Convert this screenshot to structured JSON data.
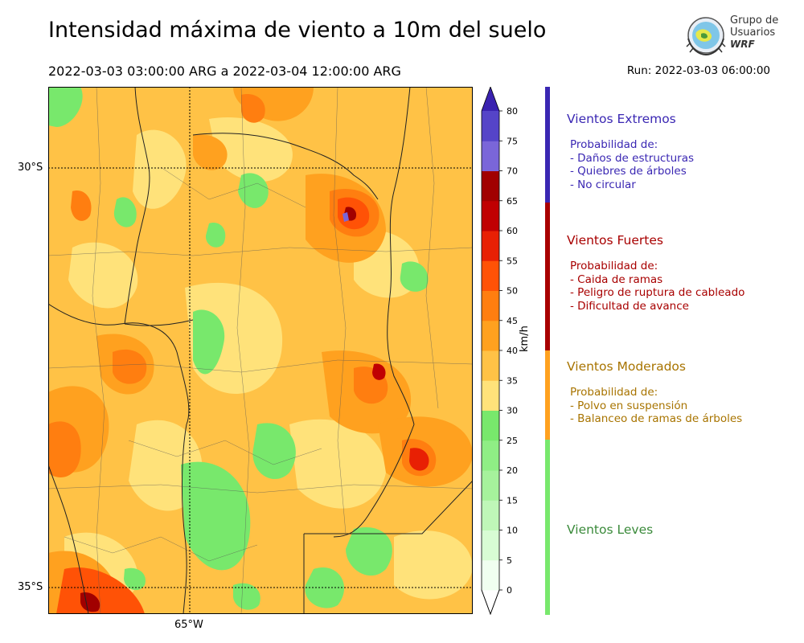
{
  "header": {
    "title": "Intensidad máxima de viento a 10m del suelo",
    "period": "2022-03-03 03:00:00 ARG  a  2022-03-04 12:00:00 ARG",
    "run": "Run: 2022-03-03 06:00:00"
  },
  "logo": {
    "line1": "Grupo de",
    "line2": "Usuarios",
    "line3": "WRF"
  },
  "map": {
    "lat_labels": [
      "30°S",
      "35°S"
    ],
    "lon_labels": [
      "65°W"
    ]
  },
  "colorbar": {
    "unit": "km/h",
    "ticks": [
      "0",
      "5",
      "10",
      "15",
      "20",
      "25",
      "30",
      "35",
      "40",
      "45",
      "50",
      "55",
      "60",
      "65",
      "70",
      "75",
      "80"
    ],
    "colors": [
      "#f0fff0",
      "#d8fcd4",
      "#bff7b8",
      "#a6f29c",
      "#8fee85",
      "#78e86c",
      "#ffe27a",
      "#ffc246",
      "#ffa11f",
      "#ff7e10",
      "#ff5206",
      "#e82004",
      "#c00002",
      "#a10000",
      "#7a66d9",
      "#5544c8",
      "#3a22b0"
    ]
  },
  "categories": [
    {
      "name": "Vientos Extremos",
      "color": "#3a27b3",
      "desc": [
        "Probabilidad de:",
        "- Daños de estructuras",
        "- Quiebres de árboles",
        "- No circular"
      ]
    },
    {
      "name": "Vientos Fuertes",
      "color": "#a80000",
      "desc": [
        "Probabilidad de:",
        "- Caida de ramas",
        "- Peligro de ruptura de cableado",
        "- Dificultad de avance"
      ]
    },
    {
      "name": "Vientos Moderados",
      "color": "#a87400",
      "desc": [
        "Probabilidad de:",
        "- Polvo en suspensión",
        "- Balanceo de ramas de árboles"
      ]
    },
    {
      "name": "Vientos Leves",
      "color": "#3a8a3a",
      "desc": []
    }
  ]
}
